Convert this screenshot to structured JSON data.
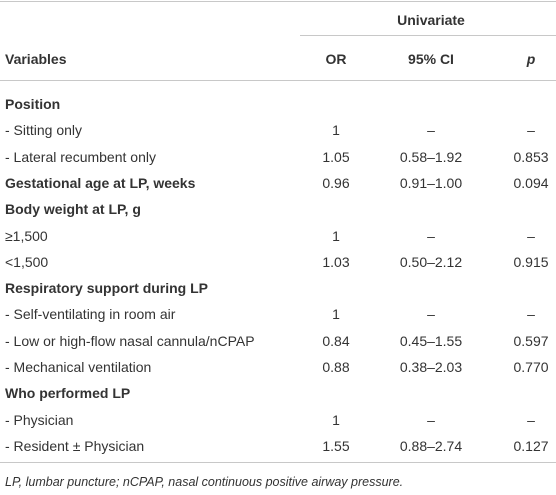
{
  "table": {
    "group_header": "Univariate",
    "columns": [
      "Variables",
      "OR",
      "95% CI",
      "p"
    ],
    "rows": [
      [
        "Position"
      ],
      [
        "- Sitting only",
        "1",
        "–",
        "–"
      ],
      [
        "- Lateral recumbent only",
        "1.05",
        "0.58–1.92",
        "0.853"
      ],
      [
        "Gestational age at LP, weeks",
        "0.96",
        "0.91–1.00",
        "0.094"
      ],
      [
        "Body weight at LP, g"
      ],
      [
        "≥1,500",
        "1",
        "–",
        "–"
      ],
      [
        "<1,500",
        "1.03",
        "0.50–2.12",
        "0.915"
      ],
      [
        "Respiratory support during LP"
      ],
      [
        "- Self-ventilating in room air",
        "1",
        "–",
        "–"
      ],
      [
        "- Low or high-flow nasal cannula/nCPAP",
        "0.84",
        "0.45–1.55",
        "0.597"
      ],
      [
        "- Mechanical ventilation",
        "0.88",
        "0.38–2.03",
        "0.770"
      ],
      [
        "Who performed LP"
      ],
      [
        "- Physician",
        "1",
        "–",
        "–"
      ],
      [
        "- Resident ± Physician",
        "1.55",
        "0.88–2.74",
        "0.127"
      ]
    ]
  },
  "footnote": "LP, lumbar puncture; nCPAP, nasal continuous positive airway pressure."
}
